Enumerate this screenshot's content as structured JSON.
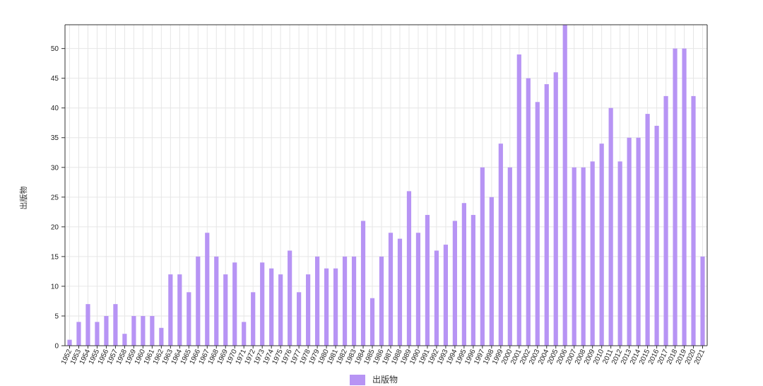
{
  "chart_data": {
    "type": "bar",
    "title": "",
    "xlabel": "",
    "ylabel": "出版物",
    "ylim": [
      0,
      54
    ],
    "yticks": [
      0,
      5,
      10,
      15,
      20,
      25,
      30,
      35,
      40,
      45,
      50
    ],
    "grid": true,
    "legend": "bottom-center",
    "categories": [
      "1952",
      "1953",
      "1954",
      "1955",
      "1956",
      "1957",
      "1958",
      "1959",
      "1960",
      "1961",
      "1962",
      "1963",
      "1964",
      "1965",
      "1966",
      "1967",
      "1968",
      "1969",
      "1970",
      "1971",
      "1972",
      "1973",
      "1974",
      "1975",
      "1976",
      "1977",
      "1978",
      "1979",
      "1980",
      "1981",
      "1982",
      "1983",
      "1984",
      "1985",
      "1986",
      "1987",
      "1988",
      "1989",
      "1990",
      "1991",
      "1992",
      "1993",
      "1994",
      "1995",
      "1996",
      "1997",
      "1998",
      "1999",
      "2000",
      "2001",
      "2002",
      "2003",
      "2004",
      "2005",
      "2006",
      "2007",
      "2008",
      "2009",
      "2010",
      "2011",
      "2012",
      "2013",
      "2014",
      "2015",
      "2016",
      "2017",
      "2018",
      "2019",
      "2020",
      "2021"
    ],
    "series": [
      {
        "name": "出版物",
        "color": "#b794f4",
        "values": [
          1,
          4,
          7,
          4,
          5,
          7,
          2,
          5,
          5,
          5,
          3,
          12,
          12,
          9,
          15,
          19,
          15,
          12,
          14,
          4,
          9,
          14,
          13,
          12,
          16,
          9,
          12,
          15,
          13,
          13,
          15,
          15,
          21,
          8,
          15,
          19,
          18,
          26,
          19,
          22,
          16,
          17,
          21,
          24,
          22,
          30,
          25,
          34,
          30,
          49,
          45,
          41,
          44,
          46,
          54,
          30,
          30,
          31,
          34,
          40,
          31,
          35,
          35,
          39,
          37,
          42,
          50,
          50,
          42,
          15
        ]
      }
    ]
  }
}
